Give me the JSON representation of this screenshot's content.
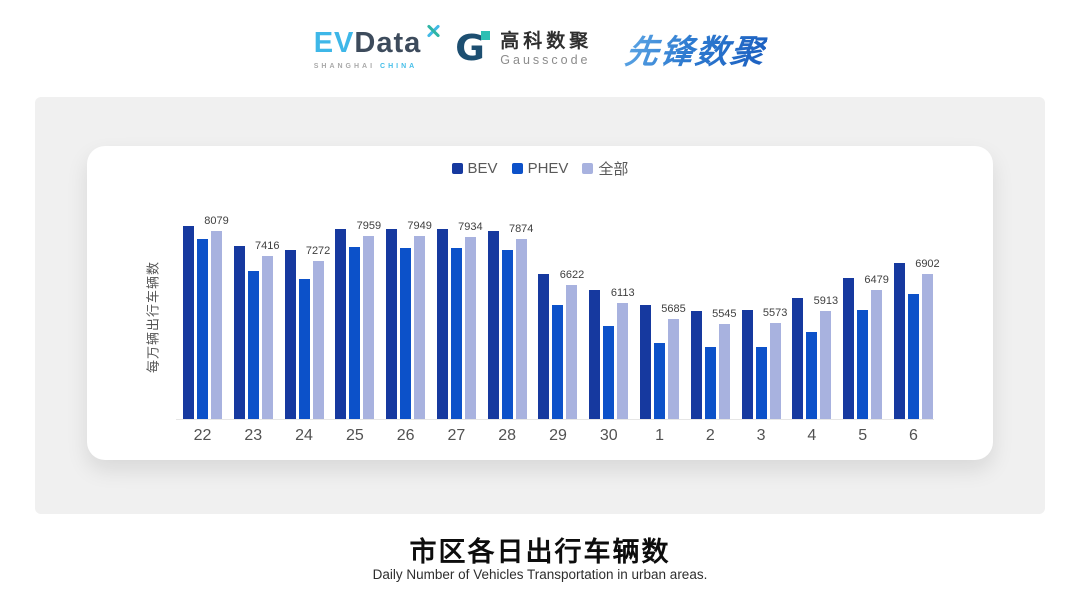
{
  "header": {
    "evdata": {
      "ev": "EV",
      "data": "Data",
      "sub_left": "SHANGHAI",
      "sub_right": "CHINA"
    },
    "gausscode": {
      "g_letter": "G",
      "cn": "高科数聚",
      "en": "Gausscode"
    },
    "xianfeng": {
      "text": "先锋数聚"
    }
  },
  "chart_data": {
    "type": "bar",
    "title": "市区各日出行车辆数",
    "categories": [
      "22",
      "23",
      "24",
      "25",
      "26",
      "27",
      "28",
      "29",
      "30",
      "1",
      "2",
      "3",
      "4",
      "5",
      "6"
    ],
    "series": [
      {
        "id": "bev",
        "name": "BEV",
        "color": "#16399f",
        "values": [
          8235,
          7670,
          7560,
          8155,
          8145,
          8145,
          8080,
          6920,
          6485,
          6055,
          5910,
          5935,
          6255,
          6805,
          7215
        ]
      },
      {
        "id": "phev",
        "name": "PHEV",
        "color": "#0c51c9",
        "values": [
          7870,
          7005,
          6775,
          7640,
          7625,
          7615,
          7580,
          6075,
          5505,
          5040,
          4915,
          4930,
          5325,
          5935,
          6365
        ]
      },
      {
        "id": "all",
        "name": "全部",
        "color": "#a8b2df",
        "data_labels": true,
        "values": [
          8079,
          7416,
          7272,
          7959,
          7949,
          7934,
          7874,
          6622,
          6113,
          5685,
          5545,
          5573,
          5913,
          6479,
          6902
        ]
      }
    ],
    "ylabel": "每万辆出行车辆数",
    "xlabel": "",
    "ylim": [
      2950,
      8500
    ],
    "grid": false,
    "legend_position": "top"
  },
  "footer": {
    "title": "市区各日出行车辆数",
    "subtitle": "Daily Number of Vehicles Transportation in urban areas."
  }
}
